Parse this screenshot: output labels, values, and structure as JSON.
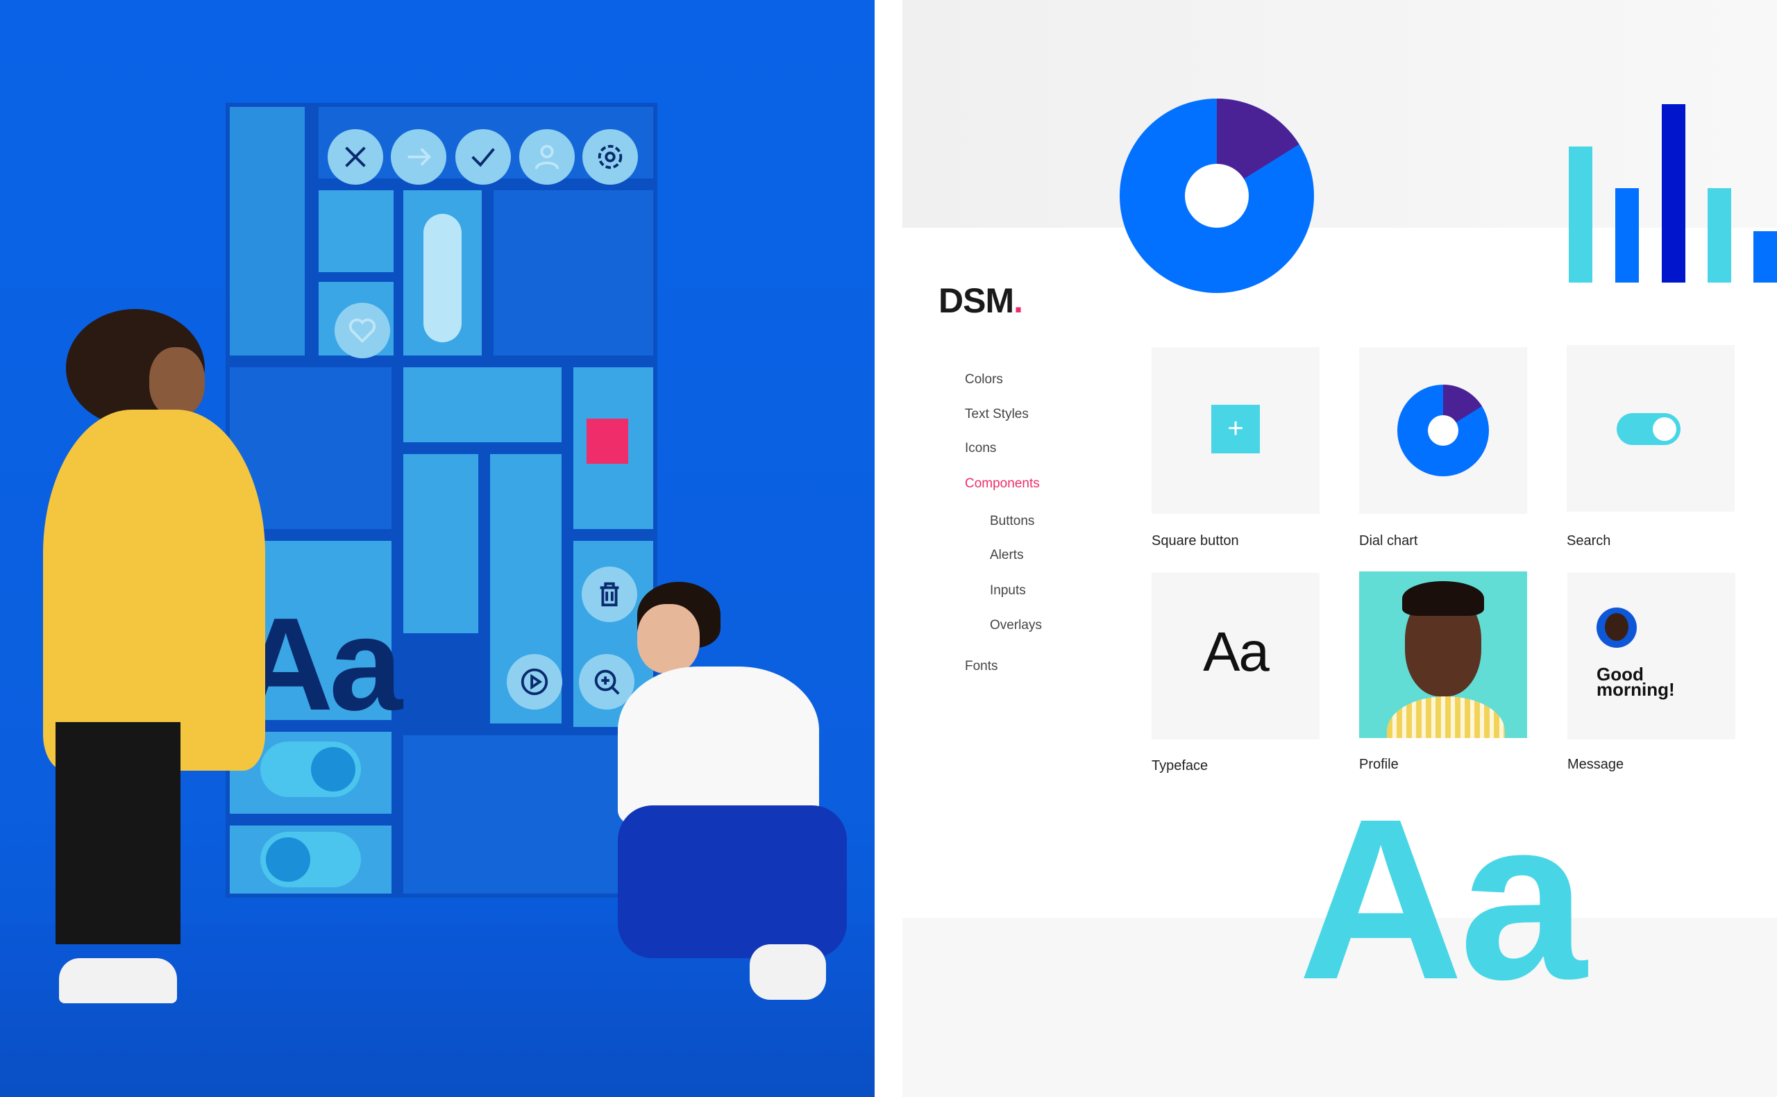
{
  "photo": {
    "icons": [
      "close-icon",
      "arrow-right-icon",
      "check-icon",
      "user-icon",
      "gear-icon",
      "heart-icon",
      "trash-icon",
      "play-icon",
      "zoom-in-icon"
    ],
    "shelf_text": "Aa"
  },
  "brand": {
    "name": "DSM",
    "dot": ".",
    "accent": "#ee2d6a"
  },
  "nav": {
    "items": [
      {
        "label": "Colors"
      },
      {
        "label": "Text Styles"
      },
      {
        "label": "Icons"
      },
      {
        "label": "Components",
        "active": true
      },
      {
        "label": "Buttons",
        "sub": true
      },
      {
        "label": "Alerts",
        "sub": true
      },
      {
        "label": "Inputs",
        "sub": true
      },
      {
        "label": "Overlays",
        "sub": true
      },
      {
        "label": "Fonts"
      }
    ]
  },
  "cards": [
    {
      "label": "Square button",
      "icon": "plus-icon"
    },
    {
      "label": "Dial chart"
    },
    {
      "label": "Search"
    },
    {
      "label": "Typeface",
      "sample": "Aa"
    },
    {
      "label": "Profile"
    },
    {
      "label": "Message",
      "text": "Good morning!"
    }
  ],
  "hero_text": "Aa",
  "colors": {
    "blue": "#0371ff",
    "purple": "#4b2296",
    "navy": "#0116cc",
    "cyan": "#48d6e6"
  }
}
